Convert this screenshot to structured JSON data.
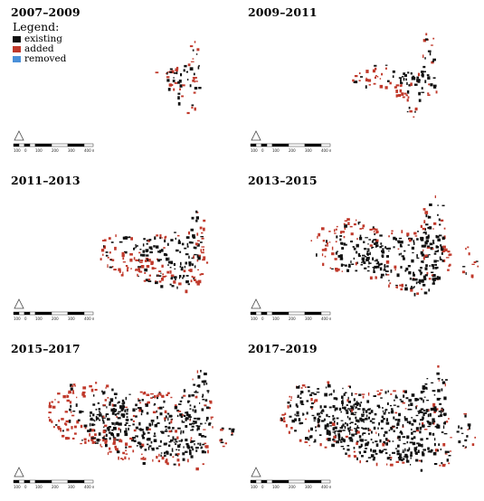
{
  "legend": {
    "title": "Legend:",
    "items": [
      {
        "label": "existing",
        "color": "#111111"
      },
      {
        "label": "added",
        "color": "#c0392b"
      },
      {
        "label": "removed",
        "color": "#4a90d9"
      }
    ]
  },
  "panels": [
    {
      "title": "2007–2009",
      "stage": 0
    },
    {
      "title": "2009–2011",
      "stage": 1
    },
    {
      "title": "2011–2013",
      "stage": 2
    },
    {
      "title": "2013–2015",
      "stage": 3
    },
    {
      "title": "2015–2017",
      "stage": 4
    },
    {
      "title": "2017–2019",
      "stage": 5
    }
  ],
  "scale_bar": {
    "labels": [
      "100",
      "0",
      "100",
      "200",
      "300",
      "400 m"
    ]
  }
}
